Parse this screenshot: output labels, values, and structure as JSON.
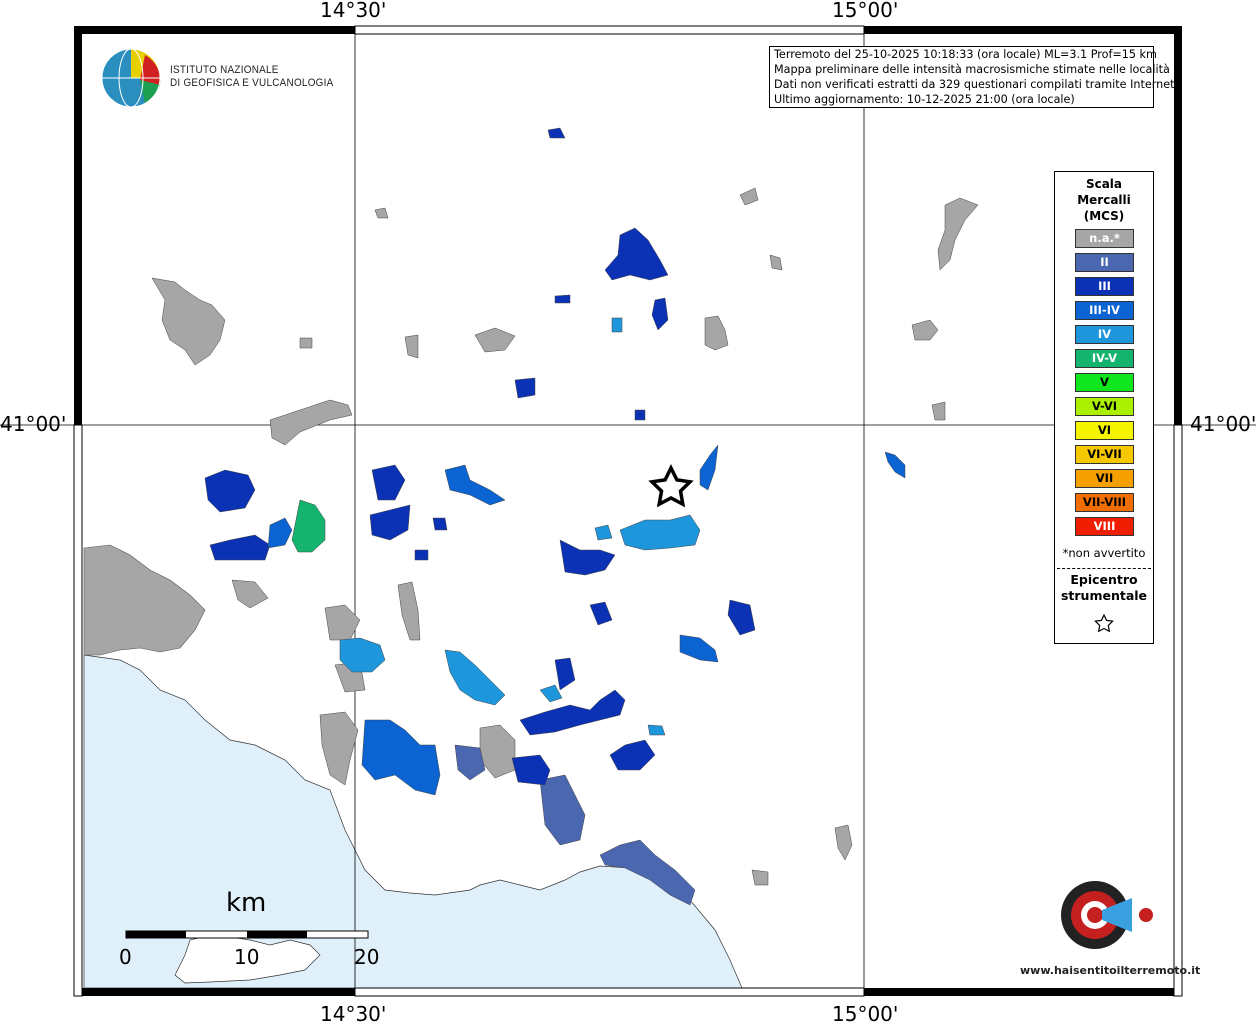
{
  "map": {
    "lon_labels": [
      "14°30'",
      "15°00'"
    ],
    "lat_label": "41°00'"
  },
  "info": {
    "line1": "Terremoto del 25-10-2025 10:18:33 (ora locale) ML=3.1 Prof=15 km",
    "line2": "Mappa preliminare delle intensità macrosismiche stimate nelle località",
    "line3": "Dati non verificati estratti da 329 questionari compilati tramite Internet.",
    "line4": "Ultimo aggiornamento: 10-12-2025 21:00 (ora locale)"
  },
  "logo": {
    "line1": "ISTITUTO NAZIONALE",
    "line2": "DI GEOFISICA E VULCANOLOGIA",
    "site": "www.haisentitoilterremoto.it"
  },
  "legend": {
    "title1": "Scala",
    "title2": "Mercalli",
    "title3": "(MCS)",
    "items": [
      {
        "label": "n.a.*",
        "color": "#a6a6a6"
      },
      {
        "label": "II",
        "color": "#4a67b0"
      },
      {
        "label": "III",
        "color": "#0b32b4"
      },
      {
        "label": "III-IV",
        "color": "#0b64d2"
      },
      {
        "label": "IV",
        "color": "#1e96dc"
      },
      {
        "label": "IV-V",
        "color": "#14b46e"
      },
      {
        "label": "V",
        "color": "#10e61e"
      },
      {
        "label": "V-VI",
        "color": "#aaf000"
      },
      {
        "label": "VI",
        "color": "#f5f500"
      },
      {
        "label": "VI-VII",
        "color": "#f5c800"
      },
      {
        "label": "VII",
        "color": "#f5a000"
      },
      {
        "label": "VII-VIII",
        "color": "#f06e00"
      },
      {
        "label": "VIII",
        "color": "#f01e00"
      }
    ],
    "note": "*non avvertito",
    "epicenter1": "Epicentro",
    "epicenter2": "strumentale"
  },
  "scalebar": {
    "unit": "km",
    "ticks": [
      "0",
      "10",
      "20"
    ]
  },
  "colors": {
    "sea": "#dff0fa",
    "land_na": "#a6a6a6"
  }
}
